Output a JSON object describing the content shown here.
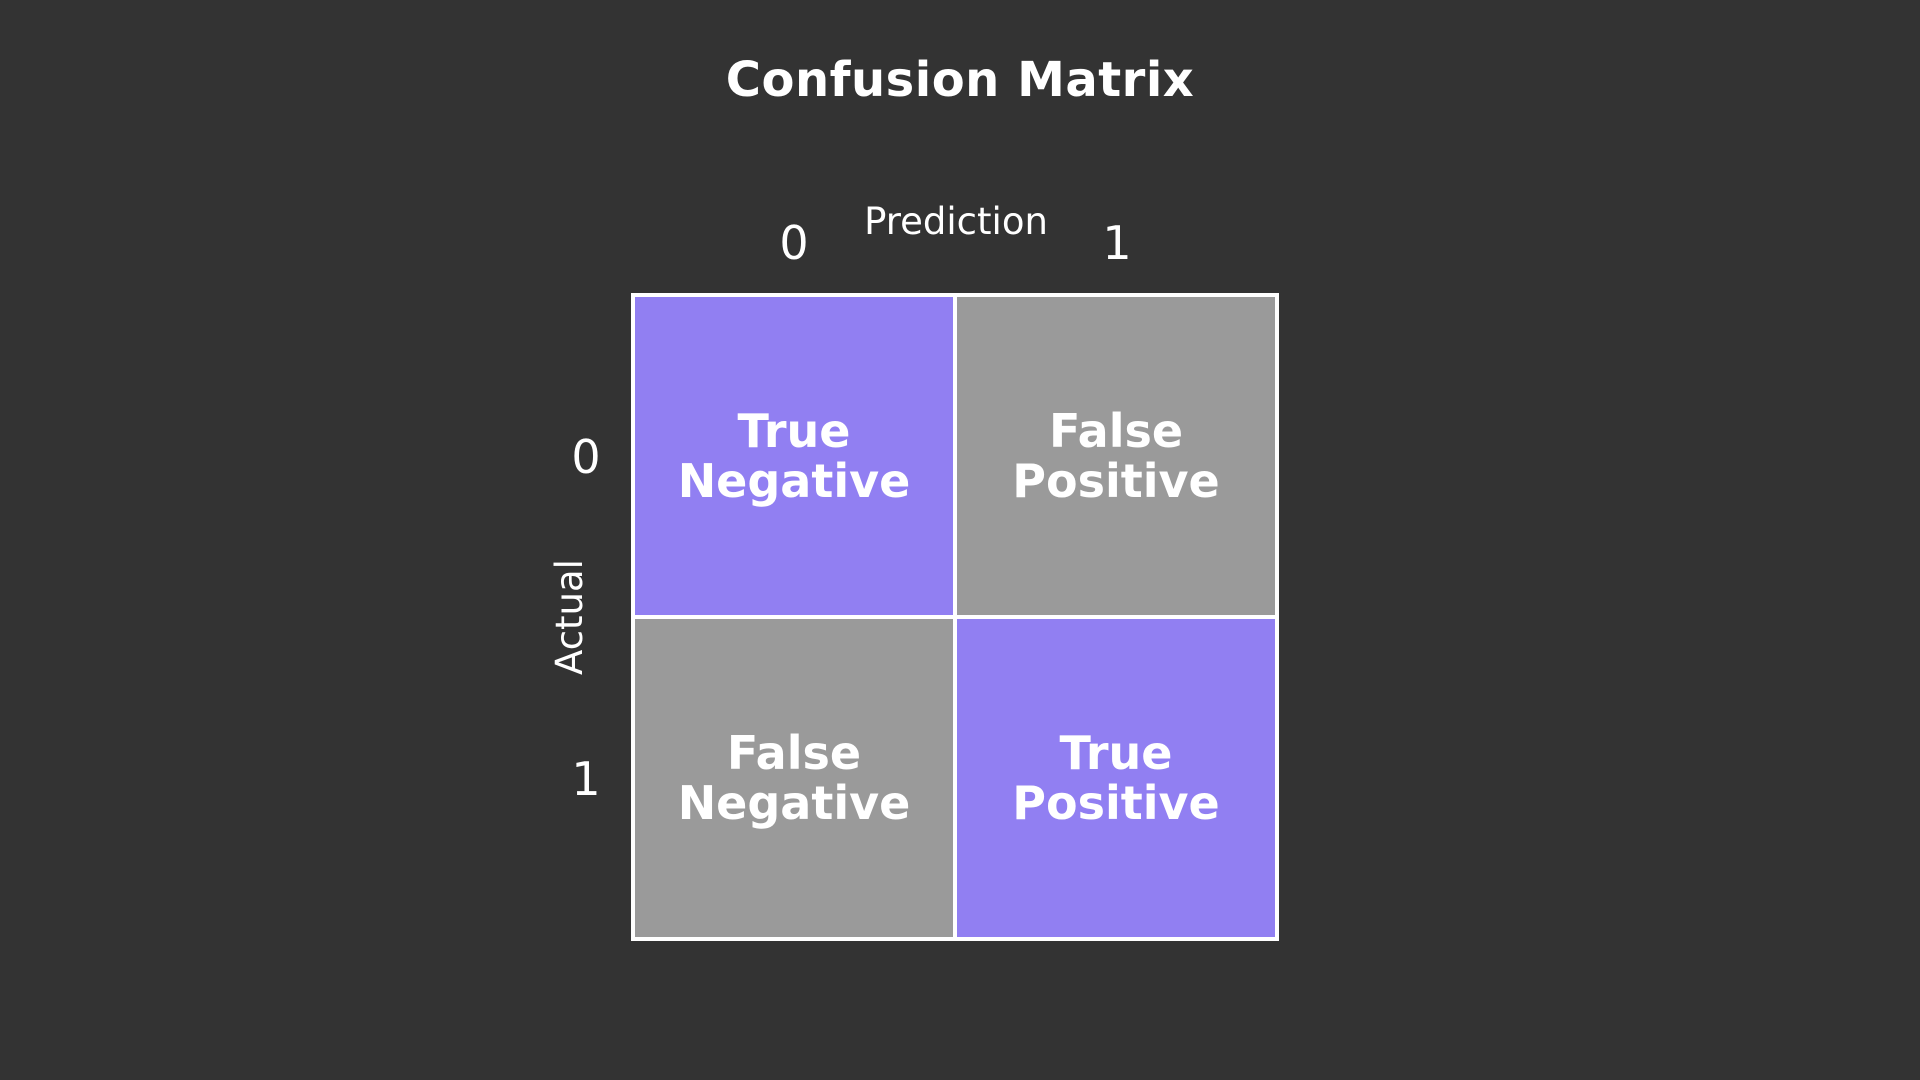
{
  "title": "Confusion Matrix",
  "x_axis": {
    "label": "Prediction",
    "ticks": [
      "0",
      "1"
    ]
  },
  "y_axis": {
    "label": "Actual",
    "ticks": [
      "0",
      "1"
    ]
  },
  "cells": [
    {
      "line1": "True",
      "line2": "Negative",
      "kind": "correct"
    },
    {
      "line1": "False",
      "line2": "Positive",
      "kind": "wrong"
    },
    {
      "line1": "False",
      "line2": "Negative",
      "kind": "wrong"
    },
    {
      "line1": "True",
      "line2": "Positive",
      "kind": "correct"
    }
  ],
  "colors": {
    "background": "#333333",
    "correct": "#917ff2",
    "wrong": "#9a9a9a",
    "text": "#ffffff"
  }
}
